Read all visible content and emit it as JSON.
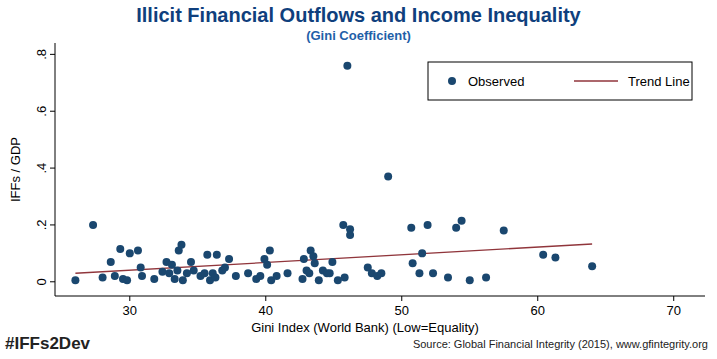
{
  "chart_data": {
    "type": "scatter",
    "title": "Illicit Financial Outflows and Income Inequality",
    "subtitle": "(Gini Coefficient)",
    "x_label": "Gini Index (World Bank) (Low=Equality)",
    "y_label": "IFFs / GDP",
    "annotations": [
      "#IFFs2Dev",
      "Source: Global Financial Integrity (2015), www.gfintegrity.org"
    ],
    "xlim": [
      24.5,
      72.3
    ],
    "ylim": [
      -0.05,
      0.84
    ],
    "xticks": [
      30,
      40,
      50,
      60,
      70
    ],
    "yticks": [
      0,
      {
        "value": 0.2,
        "label": ".2"
      },
      {
        "value": 0.4,
        "label": ".4"
      },
      {
        "value": 0.6,
        "label": ".6"
      },
      {
        "value": 0.8,
        "label": ".8"
      }
    ],
    "grid": false,
    "legend": "top-right",
    "series": [
      {
        "name": "Observed",
        "type": "scatter",
        "marker": "circle",
        "color": "#1a476f",
        "x": [
          26.0,
          27.3,
          28.0,
          28.6,
          28.9,
          29.3,
          29.5,
          29.8,
          30.0,
          30.6,
          30.8,
          30.9,
          31.8,
          32.4,
          32.7,
          32.9,
          33.1,
          33.3,
          33.5,
          33.6,
          33.8,
          33.9,
          34.2,
          34.5,
          34.7,
          35.2,
          35.5,
          35.7,
          35.9,
          36.1,
          36.3,
          36.4,
          36.8,
          37.0,
          37.3,
          37.8,
          38.7,
          39.3,
          39.6,
          39.9,
          40.1,
          40.3,
          40.4,
          40.8,
          41.6,
          42.7,
          42.8,
          43.0,
          43.2,
          43.3,
          43.5,
          43.6,
          43.9,
          44.2,
          44.5,
          44.7,
          44.9,
          45.3,
          45.7,
          45.8,
          46.0,
          46.2,
          46.2,
          47.5,
          47.8,
          48.2,
          48.5,
          49.0,
          50.7,
          50.8,
          51.3,
          51.5,
          51.9,
          52.3,
          53.4,
          54.0,
          54.4,
          55.0,
          56.2,
          57.5,
          60.4,
          61.3,
          64.0
        ],
        "values": [
          0.005,
          0.2,
          0.015,
          0.07,
          0.02,
          0.115,
          0.01,
          0.005,
          0.1,
          0.11,
          0.05,
          0.02,
          0.01,
          0.035,
          0.07,
          0.03,
          0.06,
          0.01,
          0.04,
          0.11,
          0.13,
          0.005,
          0.03,
          0.07,
          0.04,
          0.02,
          0.03,
          0.095,
          0.005,
          0.03,
          0.015,
          0.095,
          0.04,
          0.05,
          0.08,
          0.02,
          0.03,
          0.01,
          0.02,
          0.08,
          0.06,
          0.11,
          0.005,
          0.02,
          0.03,
          0.01,
          0.08,
          0.04,
          0.03,
          0.11,
          0.09,
          0.065,
          0.005,
          0.04,
          0.03,
          0.03,
          0.07,
          0.005,
          0.2,
          0.015,
          0.76,
          0.165,
          0.185,
          0.05,
          0.03,
          0.02,
          0.03,
          0.37,
          0.19,
          0.065,
          0.03,
          0.1,
          0.2,
          0.03,
          0.015,
          0.19,
          0.215,
          0.005,
          0.015,
          0.18,
          0.095,
          0.085,
          0.055
        ]
      },
      {
        "name": "Trend Line",
        "type": "line",
        "line_style": "solid",
        "color": "#90353b",
        "x": [
          26.0,
          64.0
        ],
        "values": [
          0.03,
          0.133
        ]
      }
    ]
  }
}
